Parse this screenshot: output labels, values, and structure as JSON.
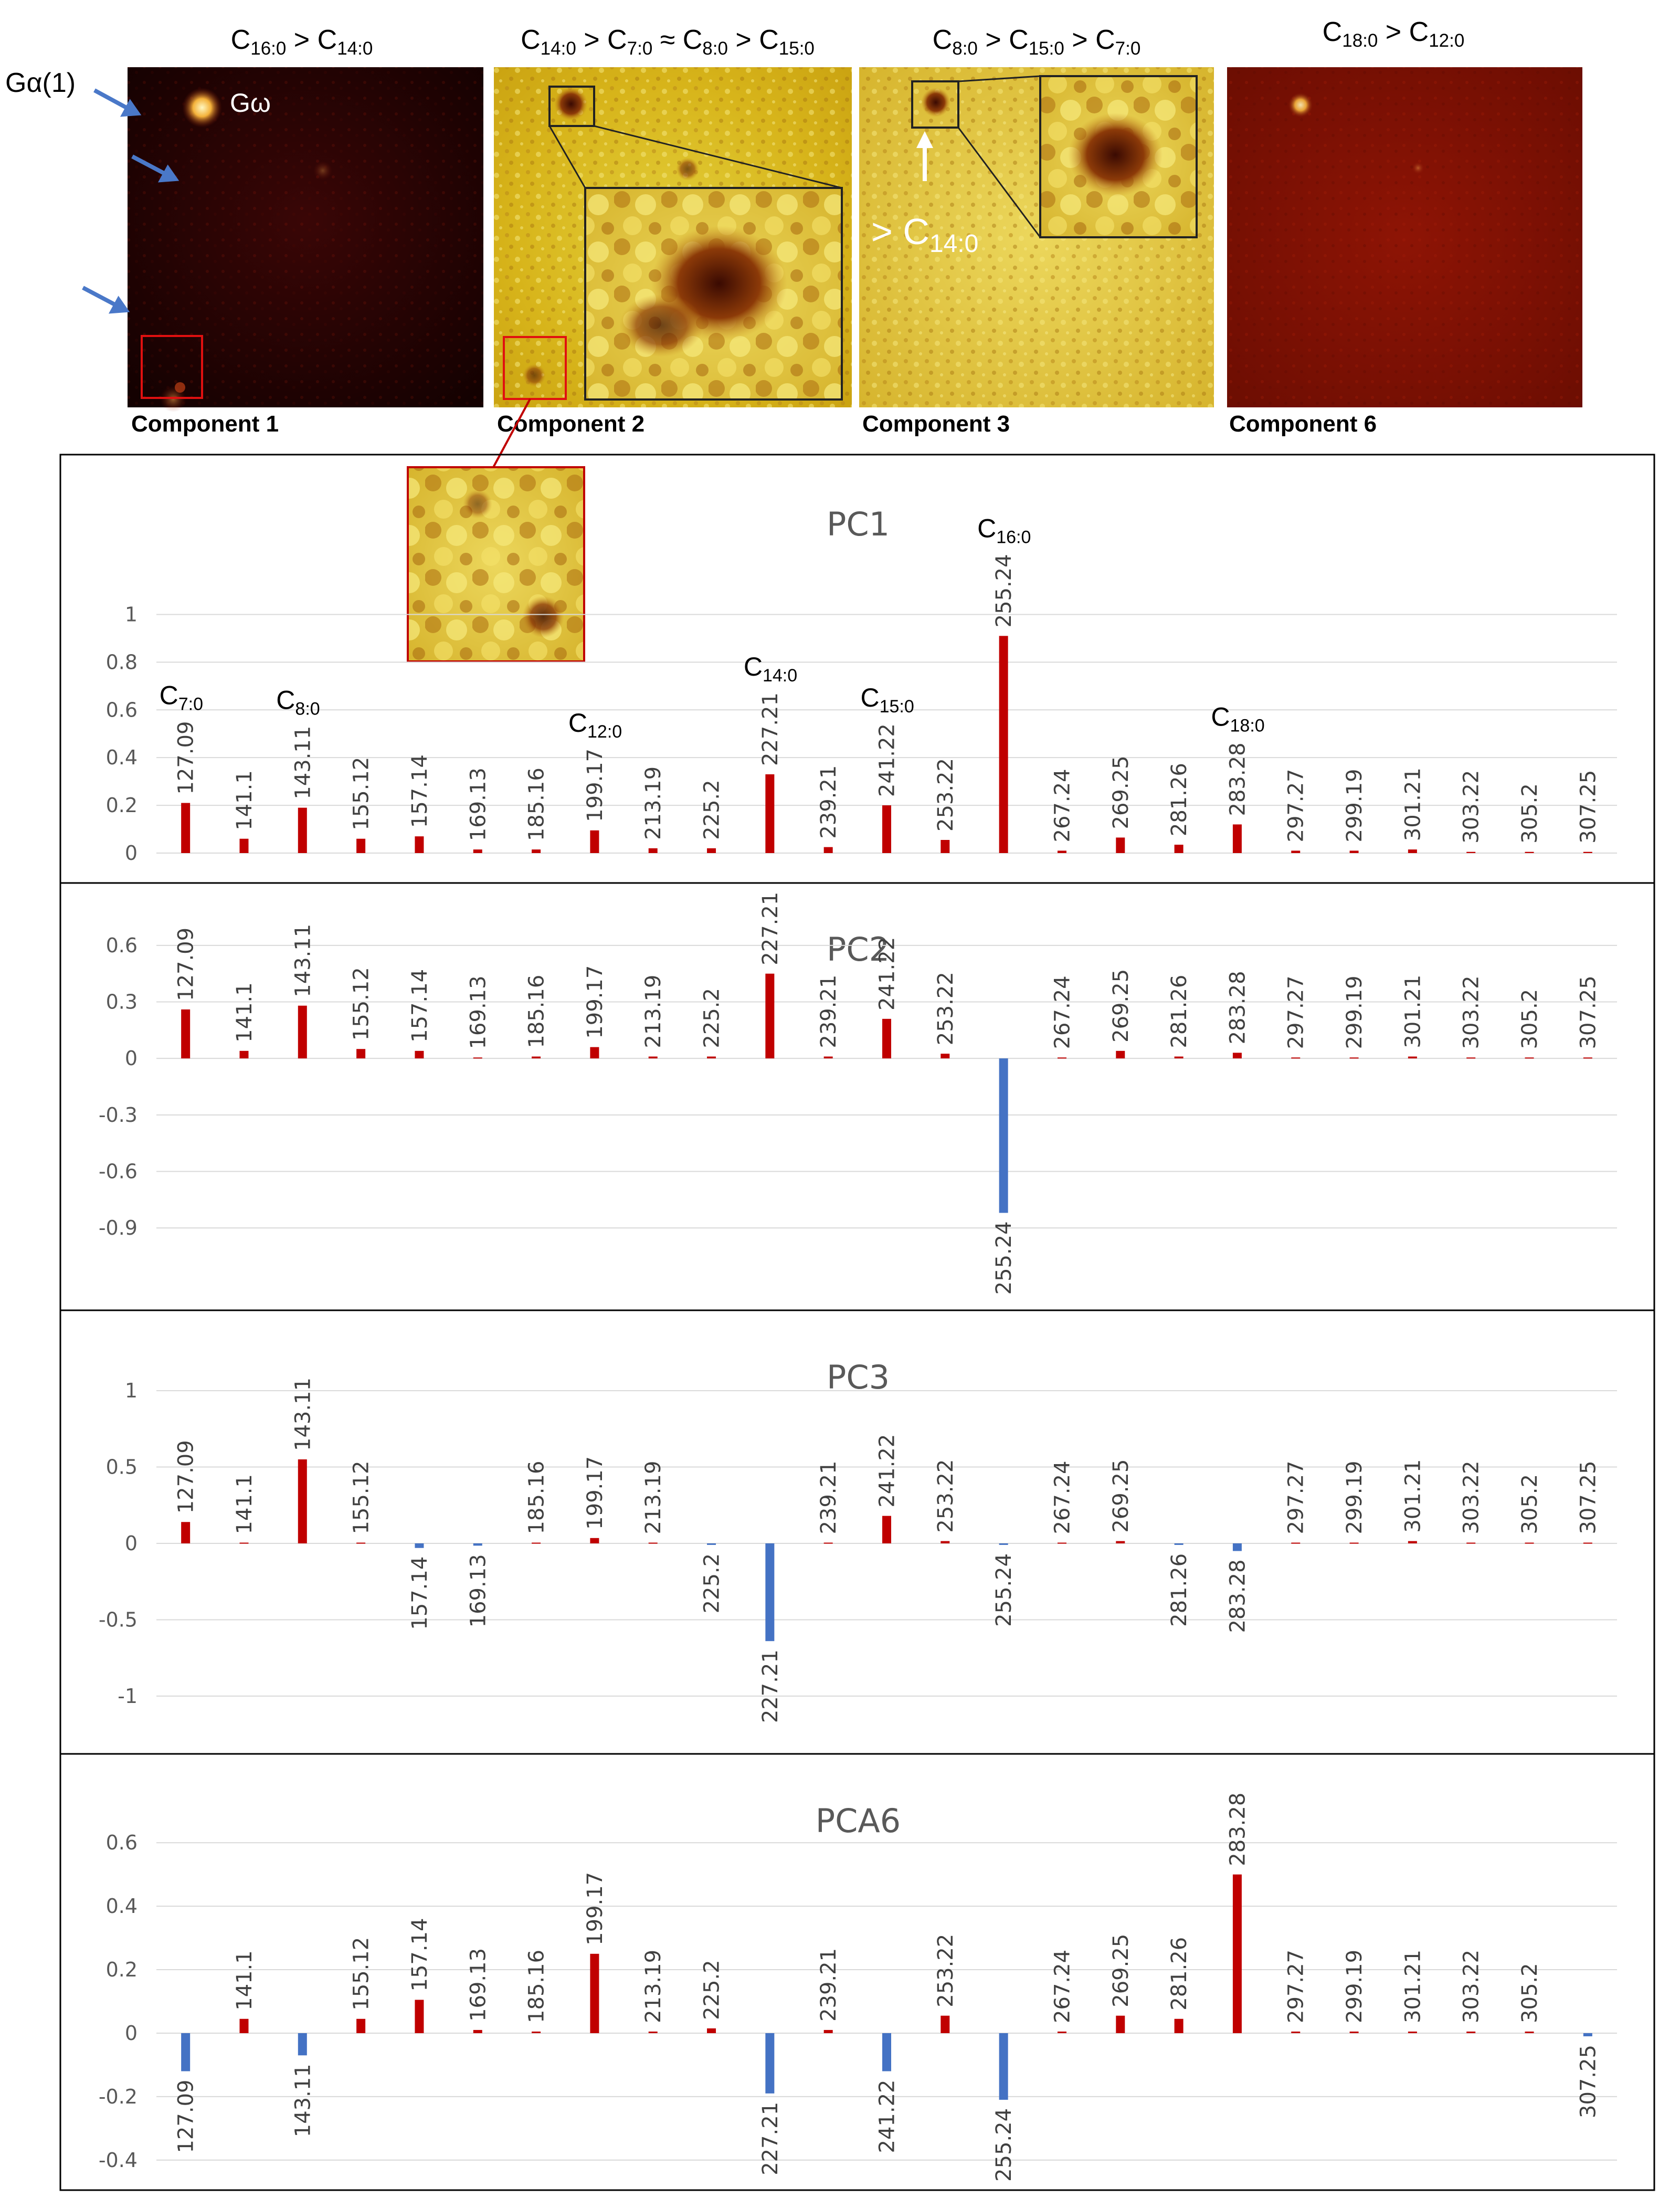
{
  "colors": {
    "positive": "#c00000",
    "negative": "#4472c4",
    "grid": "#d9d9d9"
  },
  "images": [
    {
      "id": "c1",
      "title": "C<sub>16:0</sub> > C<sub>14:0</sub>",
      "caption": "Component 1"
    },
    {
      "id": "c2",
      "title": "C<sub>14:0</sub> > C<sub>7:0</sub> ≈ C<sub>8:0</sub> > C<sub>15:0</sub>",
      "caption": "Component 2"
    },
    {
      "id": "c3",
      "title": "C<sub>8:0</sub> > C<sub>15:0</sub> > C<sub>7:0</sub>",
      "caption": "Component 3"
    },
    {
      "id": "c6",
      "title": "C<sub>18:0</sub> > C<sub>12:0</sub>",
      "caption": "Component 6"
    }
  ],
  "image_annotations": {
    "galpha": "Gα(1)",
    "gomega": "Gω",
    "c14_note": "> C<sub>14:0</sub>"
  },
  "chart_data": [
    {
      "type": "bar",
      "title": "PC1",
      "categories": [
        "127.09",
        "141.1",
        "143.11",
        "155.12",
        "157.14",
        "169.13",
        "185.16",
        "199.17",
        "213.19",
        "225.2",
        "227.21",
        "239.21",
        "241.22",
        "253.22",
        "255.24",
        "267.24",
        "269.25",
        "281.26",
        "283.28",
        "297.27",
        "299.19",
        "301.21",
        "303.22",
        "305.2",
        "307.25"
      ],
      "values": [
        0.21,
        0.06,
        0.19,
        0.06,
        0.07,
        0.015,
        0.015,
        0.095,
        0.02,
        0.02,
        0.33,
        0.025,
        0.2,
        0.055,
        0.91,
        0.01,
        0.065,
        0.035,
        0.12,
        0.01,
        0.01,
        0.015,
        0.005,
        0.005,
        0.005
      ],
      "ylim": [
        0,
        1.1
      ],
      "yticks": [
        "0",
        "0.2",
        "0.4",
        "0.6",
        "0.8",
        "1"
      ],
      "annotations": [
        {
          "category": "127.09",
          "text": "C<sub>7:0</sub>"
        },
        {
          "category": "143.11",
          "text": "C<sub>8:0</sub>"
        },
        {
          "category": "199.17",
          "text": "C<sub>12:0</sub>"
        },
        {
          "category": "227.21",
          "text": "C<sub>14:0</sub>"
        },
        {
          "category": "241.22",
          "text": "C<sub>15:0</sub>"
        },
        {
          "category": "255.24",
          "text": "C<sub>16:0</sub>"
        },
        {
          "category": "283.28",
          "text": "C<sub>18:0</sub>"
        }
      ]
    },
    {
      "type": "bar",
      "title": "PC2",
      "categories": [
        "127.09",
        "141.1",
        "143.11",
        "155.12",
        "157.14",
        "169.13",
        "185.16",
        "199.17",
        "213.19",
        "225.2",
        "227.21",
        "239.21",
        "241.22",
        "253.22",
        "255.24",
        "267.24",
        "269.25",
        "281.26",
        "283.28",
        "297.27",
        "299.19",
        "301.21",
        "303.22",
        "305.2",
        "307.25"
      ],
      "values": [
        0.26,
        0.04,
        0.28,
        0.05,
        0.04,
        0.005,
        0.01,
        0.06,
        0.01,
        0.01,
        0.45,
        0.01,
        0.21,
        0.025,
        -0.82,
        0.005,
        0.04,
        0.01,
        0.03,
        0.005,
        0.005,
        0.01,
        0.005,
        0.005,
        0.005
      ],
      "ylim": [
        -1.0,
        0.7
      ],
      "yticks": [
        "-0.9",
        "-0.6",
        "-0.3",
        "0",
        "0.3",
        "0.6"
      ],
      "annotations": []
    },
    {
      "type": "bar",
      "title": "PC3",
      "categories": [
        "127.09",
        "141.1",
        "143.11",
        "155.12",
        "157.14",
        "169.13",
        "185.16",
        "199.17",
        "213.19",
        "225.2",
        "227.21",
        "239.21",
        "241.22",
        "253.22",
        "255.24",
        "267.24",
        "269.25",
        "281.26",
        "283.28",
        "297.27",
        "299.19",
        "301.21",
        "303.22",
        "305.2",
        "307.25"
      ],
      "values": [
        0.14,
        0.005,
        0.55,
        0.005,
        -0.03,
        -0.015,
        0.005,
        0.035,
        0.005,
        -0.01,
        -0.64,
        0.005,
        0.18,
        0.015,
        -0.01,
        0.005,
        0.015,
        -0.01,
        -0.05,
        0.005,
        0.005,
        0.015,
        0.005,
        0.005,
        0.005
      ],
      "ylim": [
        -1.1,
        1.1
      ],
      "yticks": [
        "-1",
        "-0.5",
        "0",
        "0.5",
        "1"
      ],
      "annotations": []
    },
    {
      "type": "bar",
      "title": "PCA6",
      "categories": [
        "127.09",
        "141.1",
        "143.11",
        "155.12",
        "157.14",
        "169.13",
        "185.16",
        "199.17",
        "213.19",
        "225.2",
        "227.21",
        "239.21",
        "241.22",
        "253.22",
        "255.24",
        "267.24",
        "269.25",
        "281.26",
        "283.28",
        "297.27",
        "299.19",
        "301.21",
        "303.22",
        "305.2",
        "307.25"
      ],
      "values": [
        -0.12,
        0.045,
        -0.07,
        0.045,
        0.105,
        0.01,
        0.005,
        0.25,
        0.005,
        0.015,
        -0.19,
        0.01,
        -0.12,
        0.055,
        -0.21,
        0.005,
        0.055,
        0.045,
        0.5,
        0.005,
        0.005,
        0.005,
        0.005,
        0.005,
        -0.01
      ],
      "ylim": [
        -0.45,
        0.65
      ],
      "yticks": [
        "-0.4",
        "-0.2",
        "0",
        "0.2",
        "0.4",
        "0.6"
      ],
      "annotations": []
    }
  ]
}
